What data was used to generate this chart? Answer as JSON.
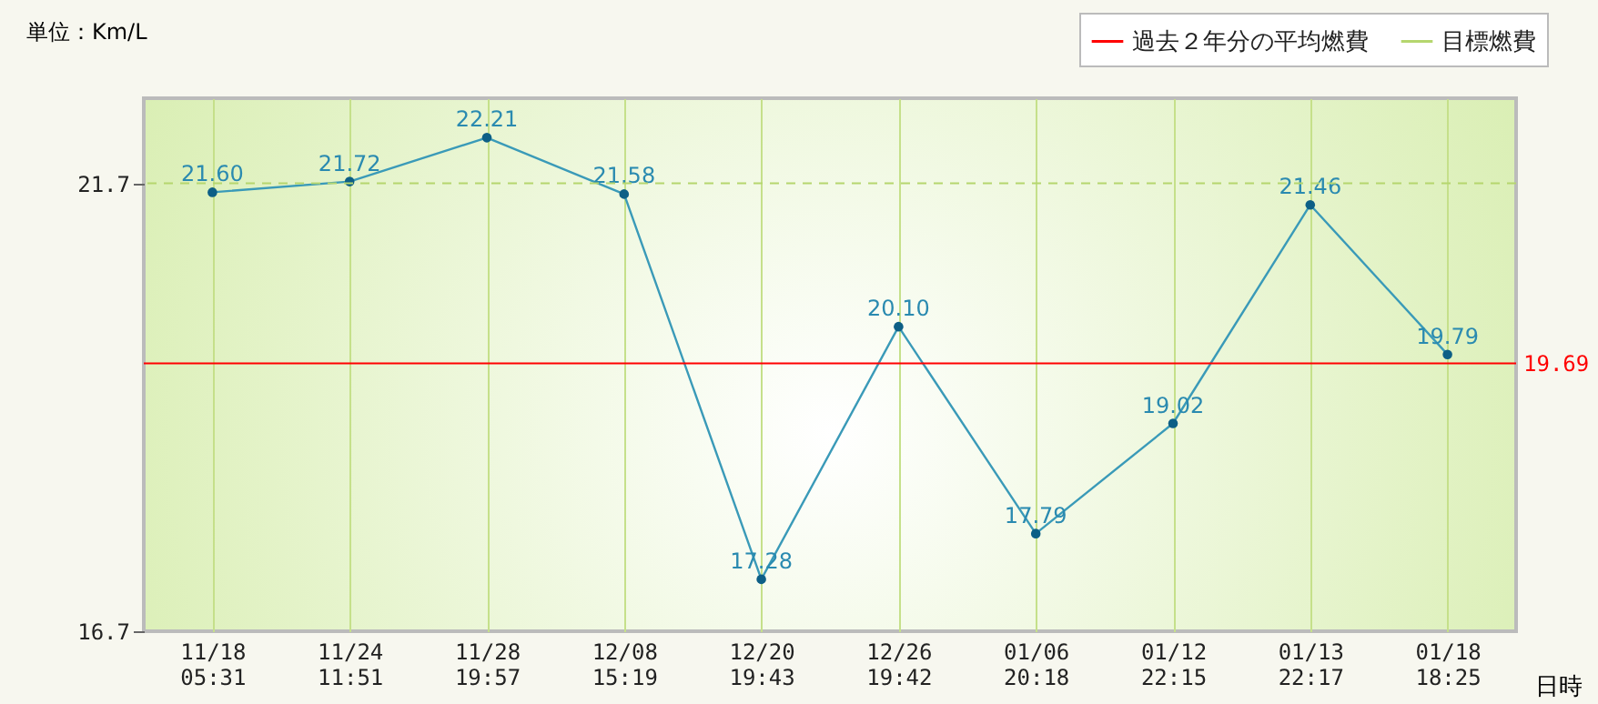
{
  "chart_data": {
    "type": "line",
    "ylabel": "単位：Km/L",
    "xlabel": "日時",
    "categories": [
      "11/18\n05:31",
      "11/24\n11:51",
      "11/28\n19:57",
      "12/08\n15:19",
      "12/20\n19:43",
      "12/26\n19:42",
      "01/06\n20:18",
      "01/12\n22:15",
      "01/13\n22:17",
      "01/18\n18:25"
    ],
    "series": [
      {
        "color": "#3a9ab8",
        "values": [
          21.6,
          21.72,
          22.21,
          21.58,
          17.28,
          20.1,
          17.79,
          19.02,
          21.46,
          19.79
        ],
        "value_labels": [
          "21.60",
          "21.72",
          "22.21",
          "21.58",
          "17.28",
          "20.10",
          "17.79",
          "19.02",
          "21.46",
          "19.79"
        ]
      }
    ],
    "ylim": [
      16.7,
      22.65
    ],
    "yticks": [
      16.7,
      21.7
    ],
    "ref_lines": [
      {
        "axis": "y",
        "value": 19.69,
        "label": "過去２年分の平均燃費",
        "color": "#ff0000",
        "line_style": "solid"
      },
      {
        "axis": "y",
        "value": 21.7,
        "label": "目標燃費",
        "color": "#b5d66e",
        "line_style": "dashed"
      }
    ],
    "annotations": [
      "19.69"
    ],
    "grid": "x",
    "legend": "top right",
    "marker": "circle"
  }
}
